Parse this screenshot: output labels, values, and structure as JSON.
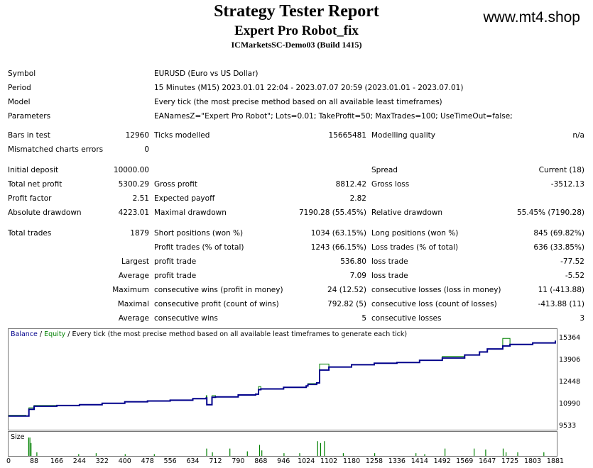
{
  "header": {
    "title": "Strategy Tester Report",
    "subtitle": "Expert Pro Robot_fix",
    "server": "ICMarketsSC-Demo03 (Build 1415)",
    "website": "www.mt4.shop"
  },
  "info": {
    "symbol_label": "Symbol",
    "symbol": "EURUSD (Euro vs US Dollar)",
    "period_label": "Period",
    "period": "15 Minutes (M15) 2023.01.01 22:04 - 2023.07.07 20:59 (2023.01.01 - 2023.07.01)",
    "model_label": "Model",
    "model": "Every tick (the most precise method based on all available least timeframes)",
    "parameters_label": "Parameters",
    "parameters": "EANamesZ=\"Expert Pro Robot\"; Lots=0.01; TakeProfit=50; MaxTrades=100; UseTimeOut=false;"
  },
  "rows": {
    "bars_label": "Bars in test",
    "bars": "12960",
    "ticks_label": "Ticks modelled",
    "ticks": "15665481",
    "quality_label": "Modelling quality",
    "quality": "n/a",
    "mismatch_label": "Mismatched charts errors",
    "mismatch": "0",
    "deposit_label": "Initial deposit",
    "deposit": "10000.00",
    "spread_label": "Spread",
    "spread": "Current (18)",
    "net_label": "Total net profit",
    "net": "5300.29",
    "gross_profit_label": "Gross profit",
    "gross_profit": "8812.42",
    "gross_loss_label": "Gross loss",
    "gross_loss": "-3512.13",
    "pf_label": "Profit factor",
    "pf": "2.51",
    "payoff_label": "Expected payoff",
    "payoff": "2.82",
    "abs_dd_label": "Absolute drawdown",
    "abs_dd": "4223.01",
    "max_dd_label": "Maximal drawdown",
    "max_dd": "7190.28 (55.45%)",
    "rel_dd_label": "Relative drawdown",
    "rel_dd": "55.45% (7190.28)",
    "trades_label": "Total trades",
    "trades": "1879",
    "short_label": "Short positions (won %)",
    "short": "1034 (63.15%)",
    "long_label": "Long positions (won %)",
    "long": "845 (69.82%)",
    "profit_trades_label": "Profit trades (% of total)",
    "profit_trades": "1243 (66.15%)",
    "loss_trades_label": "Loss trades (% of total)",
    "loss_trades": "636 (33.85%)",
    "largest_label": "Largest",
    "largest_profit_label": "profit trade",
    "largest_profit": "536.80",
    "largest_loss_label": "loss trade",
    "largest_loss": "-77.52",
    "average_label": "Average",
    "average_profit_label": "profit trade",
    "average_profit": "7.09",
    "average_loss_label": "loss trade",
    "average_loss": "-5.52",
    "maximum_label": "Maximum",
    "max_wins_label": "consecutive wins (profit in money)",
    "max_wins": "24 (12.52)",
    "max_losses_label": "consecutive losses (loss in money)",
    "max_losses": "11 (-413.88)",
    "maximal_label": "Maximal",
    "maximal_profit_label": "consecutive profit (count of wins)",
    "maximal_profit": "792.82 (5)",
    "maximal_loss_label": "consecutive loss (count of losses)",
    "maximal_loss": "-413.88 (11)",
    "average2_label": "Average",
    "avg_wins_label": "consecutive wins",
    "avg_wins": "5",
    "avg_losses_label": "consecutive losses",
    "avg_losses": "3"
  },
  "chart_data": {
    "type": "line",
    "legend": {
      "balance": "Balance",
      "sep1": " / ",
      "equity": "Equity",
      "sep2": " / ",
      "desc": "Every tick (the most precise method based on all available least timeframes to generate each tick)"
    },
    "colors": {
      "balance": "#00008b",
      "equity": "#008000",
      "size": "#008000"
    },
    "y_ticks": [
      "15364",
      "13906",
      "12448",
      "10990",
      "9533"
    ],
    "ylim": [
      9533,
      15364
    ],
    "x_ticks": [
      "0",
      "88",
      "166",
      "244",
      "322",
      "400",
      "478",
      "556",
      "634",
      "712",
      "790",
      "868",
      "946",
      "1024",
      "1102",
      "1180",
      "1258",
      "1336",
      "1414",
      "1492",
      "1569",
      "1647",
      "1725",
      "1803",
      "1881"
    ],
    "xlim": [
      0,
      1881
    ],
    "size_label": "Size",
    "series": [
      {
        "name": "Balance",
        "x": [
          0,
          60,
          70,
          88,
          166,
          244,
          322,
          400,
          478,
          556,
          634,
          680,
          682,
          700,
          712,
          790,
          850,
          860,
          868,
          946,
          1024,
          1030,
          1060,
          1070,
          1102,
          1180,
          1258,
          1336,
          1414,
          1492,
          1569,
          1620,
          1647,
          1700,
          1725,
          1803,
          1881
        ],
        "y": [
          10250,
          10250,
          10700,
          10900,
          10950,
          11000,
          11100,
          11200,
          11250,
          11300,
          11400,
          11450,
          11000,
          11500,
          11520,
          11650,
          11700,
          12000,
          12050,
          12150,
          12250,
          12350,
          12450,
          13300,
          13500,
          13650,
          13750,
          13800,
          13950,
          14100,
          14300,
          14500,
          14700,
          14900,
          15000,
          15100,
          15250
        ]
      },
      {
        "name": "Equity",
        "x": [
          0,
          60,
          70,
          88,
          166,
          244,
          322,
          400,
          478,
          556,
          634,
          680,
          682,
          700,
          712,
          790,
          850,
          860,
          868,
          946,
          1024,
          1030,
          1060,
          1070,
          1102,
          1180,
          1258,
          1336,
          1414,
          1492,
          1569,
          1620,
          1647,
          1700,
          1725,
          1803,
          1881
        ],
        "y": [
          10300,
          10250,
          10800,
          10950,
          10950,
          11000,
          11100,
          11200,
          11250,
          11300,
          11400,
          11600,
          11000,
          11600,
          11520,
          11650,
          11700,
          12200,
          12050,
          12150,
          12250,
          12400,
          12450,
          13700,
          13500,
          13650,
          13750,
          13800,
          13950,
          14200,
          14300,
          14500,
          14700,
          15400,
          15000,
          15100,
          15250
        ]
      }
    ],
    "size_bars": [
      {
        "x": 68,
        "v": 1.0
      },
      {
        "x": 72,
        "v": 1.0
      },
      {
        "x": 76,
        "v": 0.7
      },
      {
        "x": 96,
        "v": 0.2
      },
      {
        "x": 240,
        "v": 0.1
      },
      {
        "x": 300,
        "v": 0.15
      },
      {
        "x": 400,
        "v": 0.1
      },
      {
        "x": 500,
        "v": 0.1
      },
      {
        "x": 680,
        "v": 0.4
      },
      {
        "x": 700,
        "v": 0.2
      },
      {
        "x": 760,
        "v": 0.4
      },
      {
        "x": 820,
        "v": 0.25
      },
      {
        "x": 862,
        "v": 0.6
      },
      {
        "x": 870,
        "v": 0.3
      },
      {
        "x": 946,
        "v": 0.15
      },
      {
        "x": 1000,
        "v": 0.15
      },
      {
        "x": 1062,
        "v": 0.8
      },
      {
        "x": 1072,
        "v": 0.7
      },
      {
        "x": 1085,
        "v": 0.8
      },
      {
        "x": 1150,
        "v": 0.15
      },
      {
        "x": 1258,
        "v": 0.15
      },
      {
        "x": 1400,
        "v": 0.15
      },
      {
        "x": 1430,
        "v": 0.1
      },
      {
        "x": 1500,
        "v": 0.4
      },
      {
        "x": 1600,
        "v": 0.4
      },
      {
        "x": 1640,
        "v": 0.35
      },
      {
        "x": 1700,
        "v": 0.4
      },
      {
        "x": 1710,
        "v": 0.2
      },
      {
        "x": 1750,
        "v": 0.2
      },
      {
        "x": 1840,
        "v": 0.2
      }
    ]
  }
}
